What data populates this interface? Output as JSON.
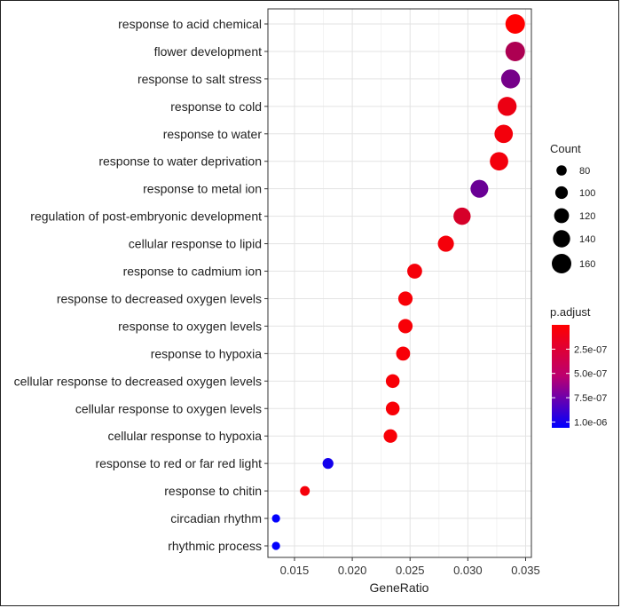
{
  "chart_data": {
    "type": "scatter",
    "xlabel": "GeneRatio",
    "ylabel": "",
    "xlim": [
      0.0127,
      0.0355
    ],
    "x_ticks": [
      "0.015",
      "0.020",
      "0.025",
      "0.030",
      "0.035"
    ],
    "x_tick_values": [
      0.015,
      0.02,
      0.025,
      0.03,
      0.035
    ],
    "grid": true,
    "terms": [
      {
        "term": "response to acid chemical",
        "gene_ratio": 0.0341,
        "count": 160,
        "p_adjust": 0.0
      },
      {
        "term": "flower development",
        "gene_ratio": 0.0341,
        "count": 160,
        "p_adjust": 3.4e-07
      },
      {
        "term": "response to salt stress",
        "gene_ratio": 0.0337,
        "count": 155,
        "p_adjust": 5.7e-07
      },
      {
        "term": "response to cold",
        "gene_ratio": 0.0334,
        "count": 155,
        "p_adjust": 8e-08
      },
      {
        "term": "response to water",
        "gene_ratio": 0.0331,
        "count": 150,
        "p_adjust": 5e-08
      },
      {
        "term": "response to water deprivation",
        "gene_ratio": 0.0327,
        "count": 150,
        "p_adjust": 5e-08
      },
      {
        "term": "response to metal ion",
        "gene_ratio": 0.031,
        "count": 145,
        "p_adjust": 6.2e-07
      },
      {
        "term": "regulation of post-embryonic development",
        "gene_ratio": 0.0295,
        "count": 140,
        "p_adjust": 1.7e-07
      },
      {
        "term": "cellular response to lipid",
        "gene_ratio": 0.0281,
        "count": 130,
        "p_adjust": 4e-08
      },
      {
        "term": "response to cadmium ion",
        "gene_ratio": 0.0254,
        "count": 120,
        "p_adjust": 4e-08
      },
      {
        "term": "response to decreased oxygen levels",
        "gene_ratio": 0.0246,
        "count": 115,
        "p_adjust": 3e-08
      },
      {
        "term": "response to oxygen levels",
        "gene_ratio": 0.0246,
        "count": 115,
        "p_adjust": 3e-08
      },
      {
        "term": "response to hypoxia",
        "gene_ratio": 0.0244,
        "count": 112,
        "p_adjust": 3e-08
      },
      {
        "term": "cellular response to decreased oxygen levels",
        "gene_ratio": 0.0235,
        "count": 110,
        "p_adjust": 3e-08
      },
      {
        "term": "cellular response to oxygen levels",
        "gene_ratio": 0.0235,
        "count": 110,
        "p_adjust": 3e-08
      },
      {
        "term": "cellular response to hypoxia",
        "gene_ratio": 0.0233,
        "count": 108,
        "p_adjust": 3e-08
      },
      {
        "term": "response to red or far red light",
        "gene_ratio": 0.0179,
        "count": 85,
        "p_adjust": 9.8e-07
      },
      {
        "term": "response to chitin",
        "gene_ratio": 0.0159,
        "count": 75,
        "p_adjust": 4e-08
      },
      {
        "term": "circadian rhythm",
        "gene_ratio": 0.0134,
        "count": 62,
        "p_adjust": 1.05e-06
      },
      {
        "term": "rhythmic process",
        "gene_ratio": 0.0134,
        "count": 62,
        "p_adjust": 1.05e-06
      }
    ],
    "legend_count": {
      "title": "Count",
      "values": [
        80,
        100,
        120,
        140,
        160
      ],
      "labels": [
        "80",
        "100",
        "120",
        "140",
        "160"
      ]
    },
    "legend_padjust": {
      "title": "p.adjust",
      "labels": [
        "2.5e-07",
        "5.0e-07",
        "7.5e-07",
        "1.0e-06"
      ],
      "values": [
        2.5e-07,
        5e-07,
        7.5e-07,
        1e-06
      ],
      "range": [
        0.0,
        1.06e-06
      ],
      "color_low": "#FF0000",
      "color_high": "#0000FF"
    },
    "legend_placement": "right"
  }
}
